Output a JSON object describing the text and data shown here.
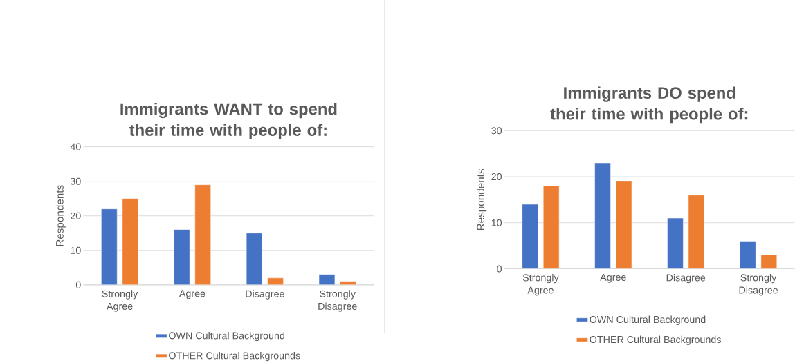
{
  "chart_data": [
    {
      "type": "bar",
      "title": "Immigrants WANT to spend their time with people of:",
      "ylabel": "Respondents",
      "categories": [
        "Strongly Agree",
        "Agree",
        "Disagree",
        "Strongly Disagree"
      ],
      "series": [
        {
          "name": "OWN Cultural Background",
          "color": "#4472c4",
          "values": [
            22,
            16,
            15,
            3
          ]
        },
        {
          "name": "OTHER Cultural Backgrounds",
          "color": "#ed7d31",
          "values": [
            25,
            29,
            2,
            1
          ]
        }
      ],
      "ylim": [
        0,
        40
      ],
      "yticks": [
        0,
        10,
        20,
        30,
        40
      ],
      "grid": "y",
      "legend": "bottom"
    },
    {
      "type": "bar",
      "title": "Immigrants DO spend their time with people of:",
      "ylabel": "Respondents",
      "categories": [
        "Strongly Agree",
        "Agree",
        "Disagree",
        "Strongly Disagree"
      ],
      "series": [
        {
          "name": "OWN Cultural Background",
          "color": "#4472c4",
          "values": [
            14,
            23,
            11,
            6
          ]
        },
        {
          "name": "OTHER Cultural Backgrounds",
          "color": "#ed7d31",
          "values": [
            18,
            19,
            16,
            3
          ]
        }
      ],
      "ylim": [
        0,
        30
      ],
      "yticks": [
        0,
        10,
        20,
        30
      ],
      "grid": "y",
      "legend": "bottom"
    }
  ]
}
